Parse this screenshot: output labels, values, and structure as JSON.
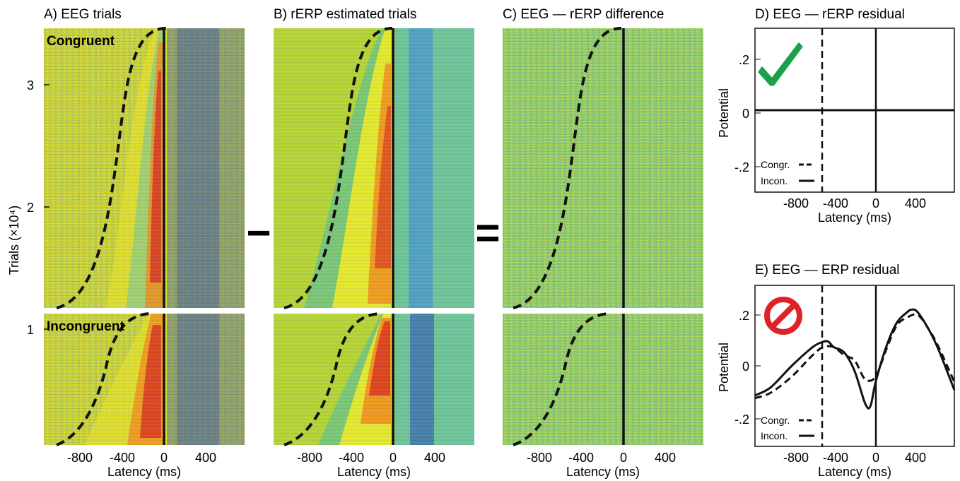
{
  "colors": {
    "background": "#d4cd38",
    "dark_blue": "#2a47b5",
    "blue": "#3f8ad9",
    "cyan": "#35b6e8",
    "teal": "#4bbcaa",
    "yellow_green": "#b2d234",
    "yellow": "#f4ec22",
    "orange": "#f08a1c",
    "red": "#d42a21",
    "check_green": "#1aa24a",
    "no_red": "#e02226"
  },
  "operators": {
    "minus": "−",
    "equals": "="
  },
  "chart_data": [
    {
      "type": "heatmap",
      "title": "A) EEG trials",
      "xlabel": "Latency (ms)",
      "ylabel": "Trials (×10⁴)",
      "xlim": [
        -1150,
        750
      ],
      "xticks": [
        "-800",
        "-400",
        "0",
        "400"
      ],
      "yticks": [
        "1",
        "2",
        "3"
      ],
      "conditions": [
        "Congruent",
        "Incongruent"
      ],
      "overlays": [
        "dashed sigmoid (stimulus onset)",
        "solid vertical line at 0 ms"
      ],
      "color_scale": "blue-cyan-yellow-red"
    },
    {
      "type": "heatmap",
      "title": "B) rERP estimated trials",
      "xlabel": "Latency (ms)",
      "xlim": [
        -1150,
        750
      ],
      "xticks": [
        "-800",
        "-400",
        "0",
        "400"
      ],
      "overlays": [
        "dashed sigmoid (stimulus onset)",
        "solid vertical line at 0 ms"
      ],
      "color_scale": "blue-cyan-yellow-red"
    },
    {
      "type": "heatmap",
      "title": "C) EEG — rERP difference",
      "xlabel": "Latency (ms)",
      "xlim": [
        -1150,
        750
      ],
      "xticks": [
        "-800",
        "-400",
        "0",
        "400"
      ],
      "overlays": [
        "dashed sigmoid (stimulus onset)",
        "solid vertical line at 0 ms"
      ],
      "color_scale": "blue-cyan-yellow-red"
    },
    {
      "type": "line",
      "title": "D) EEG — rERP residual",
      "xlabel": "Latency (ms)",
      "ylabel": "Potential",
      "xlim": [
        -1150,
        750
      ],
      "ylim": [
        -0.3,
        0.3
      ],
      "xticks": [
        "-800",
        "-400",
        "0",
        "400"
      ],
      "yticks": [
        ".2",
        "0",
        "-.2"
      ],
      "vlines": [
        -500,
        0
      ],
      "legend": [
        "Congr.",
        "Incon."
      ],
      "icon": "check-icon",
      "series": [
        {
          "name": "Congr.",
          "style": "dashed",
          "x": [
            -1150,
            -800,
            -400,
            0,
            400,
            750
          ],
          "values": [
            0,
            0,
            0,
            0,
            0,
            0
          ]
        },
        {
          "name": "Incon.",
          "style": "solid",
          "x": [
            -1150,
            -800,
            -400,
            0,
            400,
            750
          ],
          "values": [
            0,
            0,
            0,
            0,
            0,
            0
          ]
        }
      ]
    },
    {
      "type": "line",
      "title": "E) EEG — ERP residual",
      "xlabel": "Latency (ms)",
      "ylabel": "Potential",
      "xlim": [
        -1150,
        750
      ],
      "ylim": [
        -0.3,
        0.3
      ],
      "xticks": [
        "-800",
        "-400",
        "0",
        "400"
      ],
      "yticks": [
        ".2",
        "0",
        "-.2"
      ],
      "vlines": [
        -500,
        0
      ],
      "legend": [
        "Congr.",
        "Incon."
      ],
      "icon": "no-entry-icon",
      "series": [
        {
          "name": "Congr.",
          "style": "dashed",
          "x": [
            -1150,
            -1000,
            -800,
            -600,
            -500,
            -400,
            -300,
            -200,
            -100,
            0,
            100,
            200,
            300,
            400,
            500,
            600,
            750
          ],
          "values": [
            -0.12,
            -0.1,
            -0.04,
            0.04,
            0.07,
            0.07,
            0.04,
            0.02,
            -0.05,
            -0.04,
            0.06,
            0.15,
            0.18,
            0.19,
            0.14,
            0.07,
            -0.06
          ]
        },
        {
          "name": "Incon.",
          "style": "solid",
          "x": [
            -1150,
            -1000,
            -800,
            -600,
            -500,
            -450,
            -400,
            -300,
            -200,
            -100,
            -50,
            0,
            100,
            200,
            300,
            350,
            400,
            500,
            600,
            750
          ],
          "values": [
            -0.11,
            -0.08,
            0.0,
            0.07,
            0.09,
            0.09,
            0.07,
            0.05,
            -0.02,
            -0.14,
            -0.15,
            -0.06,
            0.07,
            0.16,
            0.2,
            0.21,
            0.2,
            0.14,
            0.06,
            -0.09
          ]
        }
      ]
    }
  ]
}
